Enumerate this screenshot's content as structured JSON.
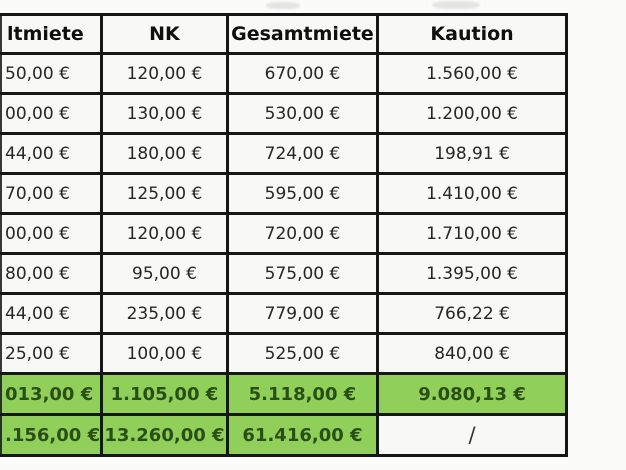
{
  "colors": {
    "background": "#fbfbf9",
    "cell_background": "#f8f8f6",
    "border": "#161616",
    "value_text": "#262626",
    "header_text": "#0f0f0f",
    "total_row_background": "#90d05a",
    "total_row_text": "#2a4f16"
  },
  "table": {
    "headers": [
      "ltmiete",
      "NK",
      "Gesamtmiete",
      "Kaution"
    ],
    "rows": [
      [
        "50,00 €",
        "120,00 €",
        "670,00 €",
        "1.560,00 €"
      ],
      [
        "00,00 €",
        "130,00 €",
        "530,00 €",
        "1.200,00 €"
      ],
      [
        "44,00 €",
        "180,00 €",
        "724,00 €",
        "198,91 €"
      ],
      [
        "70,00 €",
        "125,00 €",
        "595,00 €",
        "1.410,00 €"
      ],
      [
        "00,00 €",
        "120,00 €",
        "720,00 €",
        "1.710,00 €"
      ],
      [
        "80,00 €",
        "95,00 €",
        "575,00 €",
        "1.395,00 €"
      ],
      [
        "44,00 €",
        "235,00 €",
        "779,00 €",
        "766,22 €"
      ],
      [
        "25,00 €",
        "100,00 €",
        "525,00 €",
        "840,00 €"
      ]
    ],
    "totals": [
      [
        "013,00 €",
        "1.105,00 €",
        "5.118,00 €",
        "9.080,13 €"
      ],
      [
        ".156,00 €",
        "13.260,00 €",
        "61.416,00 €",
        "/"
      ]
    ]
  }
}
